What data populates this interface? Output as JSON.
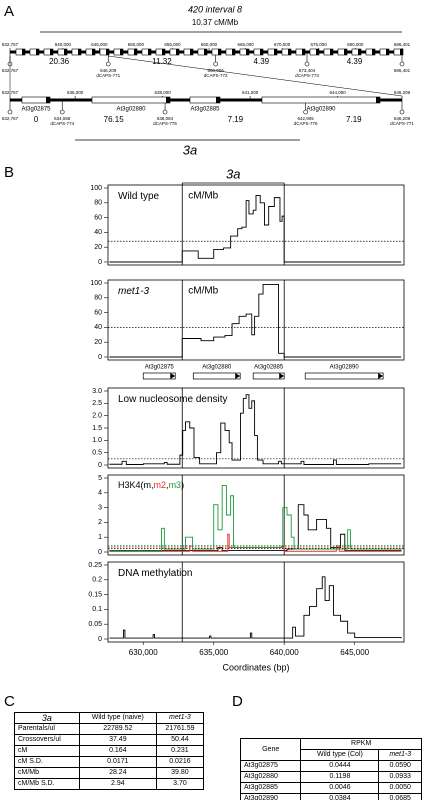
{
  "panel_a": {
    "label": "A",
    "title": "420 interval 8",
    "rate": "10.37 cM/Mb",
    "row1": {
      "coords": [
        "632,767",
        "640,000",
        "645,000",
        "650,000",
        "655,000",
        "660,000",
        "665,000",
        "670,000",
        "675,000",
        "680,000",
        "686,401"
      ],
      "markers": [
        {
          "pos": "632,767"
        },
        {
          "pos": "646,209",
          "name": "dCAPS-771"
        },
        {
          "pos": "660,906",
          "name": "dCAPS-772"
        },
        {
          "pos": "673,404",
          "name": "dCAPS-773"
        },
        {
          "pos": "686,401"
        }
      ],
      "values": [
        20.36,
        11.32,
        4.39,
        4.39
      ]
    },
    "row2": {
      "coords": [
        "632,767",
        "635,000",
        "638,000",
        "641,000",
        "644,000",
        "646,209"
      ],
      "genes": [
        "At3g02875",
        "At3g02880",
        "At3g02885",
        "At3g02890"
      ],
      "markers": [
        {
          "pos": "632,767"
        },
        {
          "pos": "634,558",
          "name": "dCAPS-774"
        },
        {
          "pos": "638,084",
          "name": "dCAPS-775"
        },
        {
          "pos": "642,905",
          "name": "dCAPS-776"
        },
        {
          "pos": "646,209",
          "name": "dCAPS-771"
        }
      ],
      "values": [
        0,
        76.15,
        7.19,
        7.19
      ]
    },
    "region_label": "3a"
  },
  "panel_b_label": "B",
  "gene_track": {
    "genes": [
      {
        "name": "At3g02875",
        "start": 630000,
        "end": 632270
      },
      {
        "name": "At3g02880",
        "start": 633550,
        "end": 636880
      },
      {
        "name": "At3g02885",
        "start": 637800,
        "end": 640000
      },
      {
        "name": "At3g02890",
        "start": 641490,
        "end": 647020
      }
    ]
  },
  "chart_data": [
    {
      "type": "line",
      "title": "Wild type",
      "annotation": "cM/Mb",
      "region_label": "3a",
      "xlim": [
        627500,
        648500
      ],
      "ylim": [
        0,
        100
      ],
      "yticks": [
        0,
        20,
        40,
        60,
        80,
        100
      ],
      "vlines": [
        632767,
        640000
      ],
      "threshold": 28,
      "series": [
        {
          "color": "#000000",
          "x": [
            627600,
            632767,
            633900,
            635000,
            635700,
            636200,
            636700,
            637000,
            637300,
            637500,
            637800,
            638000,
            638300,
            638600,
            638900,
            639300,
            639700,
            639850,
            640000,
            648300
          ],
          "values": [
            0,
            15,
            5,
            17,
            19,
            35,
            45,
            47,
            83,
            65,
            70,
            90,
            80,
            50,
            75,
            87,
            55,
            62,
            0,
            0
          ]
        }
      ]
    },
    {
      "type": "line",
      "title": "met1-3",
      "annotation": "cM/Mb",
      "xlim": [
        627500,
        648500
      ],
      "ylim": [
        0,
        100
      ],
      "yticks": [
        0,
        20,
        40,
        60,
        80,
        100
      ],
      "vlines": [
        632767,
        640000
      ],
      "threshold": 40,
      "series": [
        {
          "color": "#000000",
          "x": [
            627600,
            632767,
            634100,
            635000,
            635800,
            636300,
            636800,
            637300,
            637700,
            637900,
            638200,
            638500,
            639400,
            639600,
            640000,
            648300
          ],
          "values": [
            0,
            25,
            22,
            27,
            29,
            45,
            55,
            58,
            30,
            55,
            85,
            98,
            98,
            5,
            0,
            0
          ]
        }
      ]
    },
    {
      "type": "line",
      "title": "Low nucleosome density",
      "xlim": [
        627500,
        648500
      ],
      "ylim": [
        0,
        3
      ],
      "yticks": [
        0,
        0.5,
        {
          "value": 1,
          "label": "1.0"
        },
        1.5,
        {
          "value": 2,
          "label": "2.0"
        },
        2.5,
        {
          "value": 3,
          "label": "3.0"
        }
      ],
      "vlines": [
        632767,
        640000
      ],
      "threshold": 0.25,
      "series": [
        {
          "color": "#000000",
          "x": [
            627600,
            628500,
            628800,
            630000,
            631500,
            631700,
            632600,
            632800,
            633000,
            633300,
            633600,
            634000,
            635200,
            635500,
            635800,
            636100,
            636300,
            636900,
            637100,
            637300,
            637500,
            637700,
            637900,
            638100,
            638500,
            639600,
            639800,
            641200,
            641400,
            643500,
            643700,
            646000,
            648300
          ],
          "values": [
            0.03,
            0.15,
            0.02,
            0.05,
            0.1,
            0.03,
            0.4,
            1.4,
            1.75,
            1.5,
            0.3,
            0.05,
            0.5,
            1.7,
            1.4,
            0.9,
            0.2,
            2.1,
            2.7,
            2.85,
            2.3,
            2.6,
            1.2,
            0.2,
            0.05,
            0.15,
            0.05,
            0.15,
            0.02,
            0.2,
            0.02,
            0.05,
            0.05
          ]
        }
      ]
    },
    {
      "type": "line",
      "title": "H3K4",
      "title_open": "(",
      "title_separator": ",",
      "title_close": ")",
      "xlim": [
        627500,
        648500
      ],
      "ylim": [
        0,
        5
      ],
      "yticks": [
        0,
        1,
        2,
        3,
        4,
        5
      ],
      "vlines": [
        632767,
        640000
      ],
      "series": [
        {
          "name": "m",
          "color": "#000000",
          "threshold": 0.25,
          "x": [
            627600,
            635300,
            635600,
            635900,
            640200,
            641000,
            641400,
            641700,
            642300,
            643000,
            643300,
            644000,
            644300,
            648300
          ],
          "values": [
            0.1,
            0.3,
            0.1,
            0.1,
            0.2,
            3.2,
            2.5,
            1.5,
            2.2,
            1.6,
            0.3,
            1.2,
            0.1,
            0.1
          ]
        },
        {
          "name": "m2",
          "color": "#e0302a",
          "threshold": 0.35,
          "x": [
            627600,
            633300,
            633500,
            636000,
            636100,
            639800,
            640000,
            643700,
            643900,
            648300
          ],
          "values": [
            0.05,
            0.4,
            0.05,
            1.2,
            0.3,
            0.4,
            0.05,
            0.4,
            0.05,
            0.05
          ]
        },
        {
          "name": "m3",
          "color": "#1a9a3a",
          "threshold": 0.45,
          "x": [
            627600,
            631300,
            631500,
            633000,
            633500,
            635000,
            635300,
            635600,
            635900,
            636200,
            636400,
            639900,
            640200,
            640500,
            640700,
            644500,
            644700,
            648300
          ],
          "values": [
            0.05,
            1.6,
            0.2,
            1.0,
            0.2,
            3.2,
            1.5,
            4.5,
            2.5,
            3.8,
            0.3,
            3.0,
            2.5,
            1.0,
            0.2,
            1.5,
            0.2,
            0.05
          ]
        }
      ]
    },
    {
      "type": "line",
      "title": "DNA methylation",
      "xlim": [
        627500,
        648500
      ],
      "ylim": [
        0,
        0.25
      ],
      "yticks": [
        0,
        0.05,
        0.1,
        0.15,
        0.2,
        0.25
      ],
      "vlines": [
        632767,
        640000
      ],
      "xticks": [
        {
          "value": 630000,
          "label": "630,000"
        },
        {
          "value": 635000,
          "label": "635,000"
        },
        {
          "value": 640000,
          "label": "640,000"
        },
        {
          "value": 645000,
          "label": "645,000"
        }
      ],
      "xlabel": "Coordinates (bp)",
      "series": [
        {
          "color": "#000000",
          "x": [
            627600,
            628600,
            628700,
            630700,
            630800,
            634700,
            634800,
            637600,
            637700,
            640600,
            640800,
            641400,
            641800,
            642300,
            642700,
            642900,
            643200,
            643500,
            644000,
            644500,
            645000,
            648300
          ],
          "values": [
            0.003,
            0.03,
            0.003,
            0.015,
            0.003,
            0.01,
            0.003,
            0.02,
            0.003,
            0.04,
            0.01,
            0.08,
            0.11,
            0.17,
            0.21,
            0.13,
            0.18,
            0.08,
            0.06,
            0.02,
            0.005,
            0.003
          ]
        }
      ]
    }
  ],
  "table_c": {
    "label": "C",
    "header": [
      "3a",
      "Wild type (naive)",
      "met1-3"
    ],
    "rows": [
      [
        "Parentals/ul",
        "22789.52",
        "21761.59"
      ],
      [
        "Crossovers/ul",
        "37.49",
        "50.44"
      ],
      [
        "cM",
        "0.164",
        "0.231"
      ],
      [
        "cM S.D.",
        "0.0171",
        "0.0216"
      ],
      [
        "cM/Mb",
        "28.24",
        "39.80"
      ],
      [
        "cM/Mb S.D.",
        "2.94",
        "3.70"
      ]
    ]
  },
  "table_d": {
    "label": "D",
    "header": [
      "Gene",
      "RPKM"
    ],
    "subheader": [
      "Wild type (Col)",
      "met1-3"
    ],
    "rows": [
      [
        "At3g02875",
        "0.0444",
        "0.0590"
      ],
      [
        "At3g02880",
        "0.1198",
        "0.0933"
      ],
      [
        "At3g02885",
        "0.0046",
        "0.0050"
      ],
      [
        "At3g02890",
        "0.0384",
        "0.0685"
      ]
    ]
  }
}
